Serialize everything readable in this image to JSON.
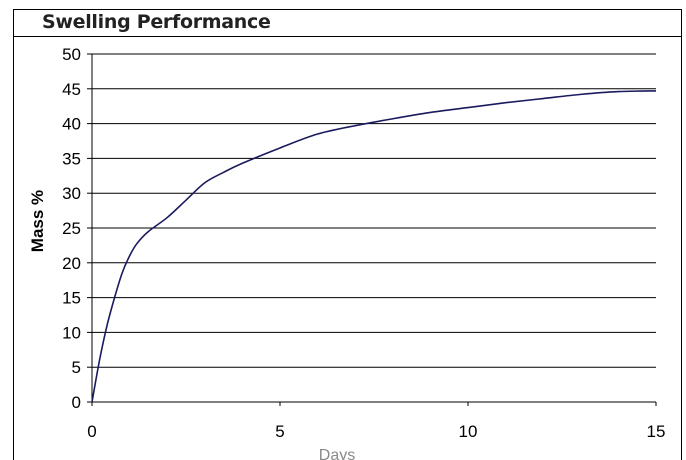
{
  "chart_data": {
    "type": "line",
    "title": "Swelling Performance",
    "xlabel": "Days",
    "ylabel": "Mass %",
    "xlim": [
      0,
      15
    ],
    "ylim": [
      0,
      50
    ],
    "x_ticks": [
      "0",
      "5",
      "10",
      "15"
    ],
    "y_ticks": [
      "0",
      "5",
      "10",
      "15",
      "20",
      "25",
      "30",
      "35",
      "40",
      "45",
      "50"
    ],
    "grid": "horizontal",
    "legend": "none",
    "line_color": "#1a1a5e",
    "series": [
      {
        "x": [
          0,
          0.2,
          0.4,
          0.6,
          0.8,
          1.0,
          1.2,
          1.5,
          2.0,
          2.5,
          3.0,
          3.5,
          4.0,
          5.0,
          6.0,
          7.0,
          8.0,
          9.0,
          10.0,
          11.0,
          12.0,
          13.0,
          14.0,
          15.0
        ],
        "y": [
          0,
          6,
          11,
          15,
          18.5,
          21,
          22.8,
          24.5,
          26.5,
          29,
          31.5,
          33,
          34.3,
          36.5,
          38.5,
          39.7,
          40.7,
          41.6,
          42.3,
          43,
          43.6,
          44.2,
          44.6,
          44.7
        ]
      }
    ]
  }
}
